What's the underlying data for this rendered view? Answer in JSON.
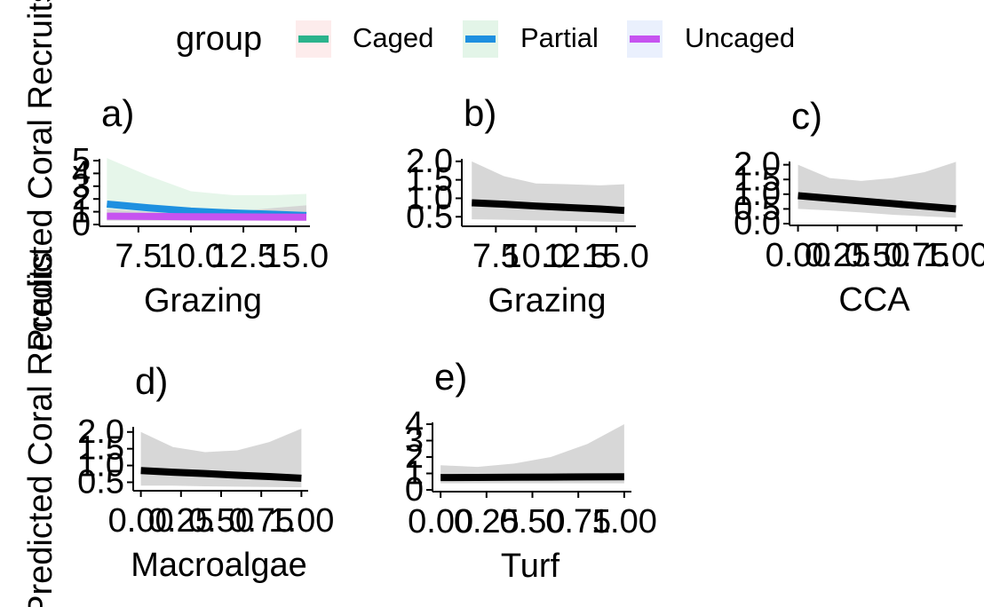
{
  "y_label": "Predicted Coral Recruits",
  "legend": {
    "title": "group",
    "items": [
      {
        "name": "Caged",
        "color": "#2bb38c",
        "fill": "#fdecec"
      },
      {
        "name": "Partial",
        "color": "#1e90e0",
        "fill": "#e3f5e8"
      },
      {
        "name": "Uncaged",
        "color": "#c653f0",
        "fill": "#eaf0fd"
      }
    ]
  },
  "chart_data": [
    {
      "type": "line",
      "title": "a)",
      "x_label": "Grazing",
      "x": [
        6,
        8,
        10,
        12,
        14,
        15.5
      ],
      "xlim": [
        5.9,
        15.5
      ],
      "xticks": [
        7.5,
        {
          "value": 10,
          "label": "10.0"
        },
        12.5,
        {
          "value": 15,
          "label": "15.0"
        }
      ],
      "ylim": [
        0,
        5
      ],
      "yticks": [
        0,
        1,
        2,
        3,
        4,
        5
      ],
      "series": [
        {
          "name": "Partial",
          "color": "#1e90e0",
          "fill": "#e3f5e8",
          "values": [
            1.6,
            1.3,
            1.05,
            0.9,
            0.8,
            0.7
          ],
          "lower": [
            0.4,
            0.4,
            0.35,
            0.35,
            0.35,
            0.35
          ],
          "upper": [
            5.2,
            3.8,
            2.6,
            2.3,
            2.3,
            2.4
          ]
        },
        {
          "name": "Uncaged",
          "color": "#c653f0",
          "fill": "#d3d3d3",
          "values": [
            0.65,
            0.63,
            0.61,
            0.6,
            0.58,
            0.57
          ],
          "lower": [
            0.3,
            0.3,
            0.3,
            0.3,
            0.3,
            0.3
          ],
          "upper": [
            1.2,
            1.0,
            0.9,
            1.0,
            1.3,
            1.5
          ]
        }
      ]
    },
    {
      "type": "line",
      "title": "b)",
      "x_label": "Grazing",
      "x": [
        6,
        8,
        10,
        12,
        14,
        15.5
      ],
      "xlim": [
        5.6,
        16.0
      ],
      "xticks": [
        7.5,
        {
          "value": 10,
          "label": "10.0"
        },
        12.5,
        {
          "value": 15,
          "label": "15.0"
        }
      ],
      "ylim": [
        0.29,
        2.02
      ],
      "yticks": [
        0.5,
        {
          "value": 1,
          "label": "1.0"
        },
        1.5,
        {
          "value": 2,
          "label": "2.0"
        }
      ],
      "series": [
        {
          "color": "#000000",
          "fill": "#d3d3d3",
          "values": [
            0.88,
            0.84,
            0.79,
            0.75,
            0.71,
            0.67
          ],
          "lower": [
            0.43,
            0.42,
            0.4,
            0.39,
            0.37,
            0.36
          ],
          "upper": [
            2.0,
            1.6,
            1.4,
            1.38,
            1.35,
            1.38
          ]
        }
      ]
    },
    {
      "type": "line",
      "title": "c)",
      "x_label": "CCA",
      "x": [
        0,
        0.2,
        0.4,
        0.6,
        0.8,
        1.0
      ],
      "xlim": [
        -0.02,
        1.02
      ],
      "xticks": [
        {
          "value": 0,
          "label": "0.00"
        },
        0.25,
        {
          "value": 0.5,
          "label": "0.50"
        },
        0.75,
        {
          "value": 1,
          "label": "1.00"
        }
      ],
      "ylim": [
        0,
        2.05
      ],
      "yticks": [
        {
          "value": 0,
          "label": "0.0"
        },
        0.5,
        {
          "value": 1,
          "label": "1.0"
        },
        1.5,
        {
          "value": 2,
          "label": "2.0"
        }
      ],
      "series": [
        {
          "color": "#000000",
          "fill": "#d3d3d3",
          "values": [
            0.95,
            0.86,
            0.77,
            0.68,
            0.59,
            0.5
          ],
          "lower": [
            0.5,
            0.45,
            0.38,
            0.3,
            0.25,
            0.2
          ],
          "upper": [
            2.0,
            1.55,
            1.45,
            1.55,
            1.75,
            2.1
          ]
        }
      ]
    },
    {
      "type": "line",
      "title": "d)",
      "x_label": "Macroalgae",
      "x": [
        0,
        0.2,
        0.4,
        0.6,
        0.8,
        1.0
      ],
      "xlim": [
        -0.02,
        1.02
      ],
      "xticks": [
        {
          "value": 0,
          "label": "0.00"
        },
        0.25,
        {
          "value": 0.5,
          "label": "0.50"
        },
        0.75,
        {
          "value": 1,
          "label": "1.00"
        }
      ],
      "ylim": [
        0.3,
        2.1
      ],
      "yticks": [
        0.5,
        {
          "value": 1,
          "label": "1.0"
        },
        1.5,
        {
          "value": 2,
          "label": "2.0"
        }
      ],
      "series": [
        {
          "color": "#000000",
          "fill": "#d3d3d3",
          "values": [
            0.85,
            0.8,
            0.76,
            0.71,
            0.67,
            0.62
          ],
          "lower": [
            0.4,
            0.4,
            0.38,
            0.37,
            0.36,
            0.35
          ],
          "upper": [
            2.0,
            1.55,
            1.4,
            1.45,
            1.7,
            2.1
          ]
        }
      ]
    },
    {
      "type": "line",
      "title": "e)",
      "x_label": "Turf",
      "x": [
        0,
        0.2,
        0.4,
        0.6,
        0.8,
        1.0
      ],
      "xlim": [
        -0.02,
        1.02
      ],
      "xticks": [
        {
          "value": 0,
          "label": "0.00"
        },
        0.25,
        {
          "value": 0.5,
          "label": "0.50"
        },
        0.75,
        {
          "value": 1,
          "label": "1.00"
        }
      ],
      "ylim": [
        0,
        4
      ],
      "yticks": [
        0,
        1,
        2,
        3,
        4
      ],
      "series": [
        {
          "color": "#000000",
          "fill": "#d3d3d3",
          "values": [
            0.75,
            0.76,
            0.77,
            0.78,
            0.79,
            0.8
          ],
          "lower": [
            0.4,
            0.4,
            0.4,
            0.4,
            0.4,
            0.4
          ],
          "upper": [
            1.5,
            1.4,
            1.6,
            2.0,
            2.8,
            4.0
          ]
        }
      ]
    }
  ]
}
